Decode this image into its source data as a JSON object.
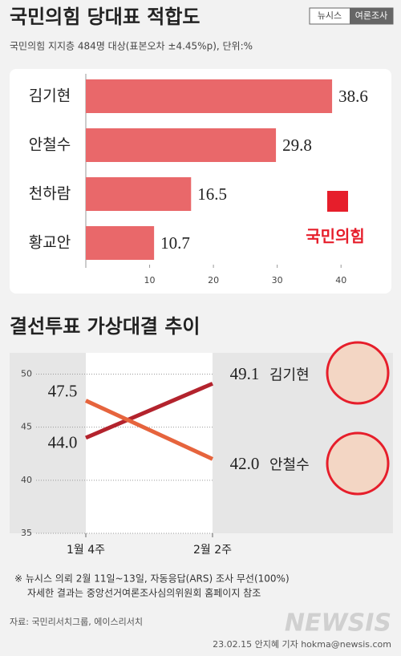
{
  "header": {
    "title": "국민의힘 당대표 적합도",
    "badge_left": "뉴시스",
    "badge_right": "여론조사"
  },
  "chart_data": [
    {
      "type": "bar",
      "subtitle": "국민의힘 지지층 484명 대상(표본오차 ±4.45%p), 단위:%",
      "categories": [
        "김기현",
        "안철수",
        "천하람",
        "황교안"
      ],
      "values": [
        38.6,
        29.8,
        16.5,
        10.7
      ],
      "color": "#e9686a",
      "xlim": [
        0,
        45
      ],
      "xticks": [
        10,
        20,
        30,
        40
      ],
      "logo_text": "국민의힘"
    },
    {
      "type": "line",
      "title": "결선투표 가상대결 추이",
      "categories": [
        "1월 4주",
        "2월 2주"
      ],
      "ylim": [
        35,
        52
      ],
      "yticks": [
        35,
        40,
        45,
        50
      ],
      "series": [
        {
          "name": "김기현",
          "color": "#b3232d",
          "values": [
            44.0,
            49.1
          ],
          "value_labels": [
            "44.0",
            "49.1"
          ]
        },
        {
          "name": "안철수",
          "color": "#e6643d",
          "values": [
            47.5,
            42.0
          ],
          "value_labels": [
            "47.5",
            "42.0"
          ]
        }
      ]
    }
  ],
  "footer": {
    "note1": "※ 뉴시스 의뢰 2월 11일~13일, 자동응답(ARS) 조사 무선(100%)",
    "note2": "자세한 결과는 중앙선거여론조사심의위원회 홈페이지 참조",
    "source": "자료: 국민리서치그룹, 에이스리서치",
    "credit": "23.02.15 안지혜 기자 hokma@newsis.com",
    "watermark": "NEWSIS"
  }
}
